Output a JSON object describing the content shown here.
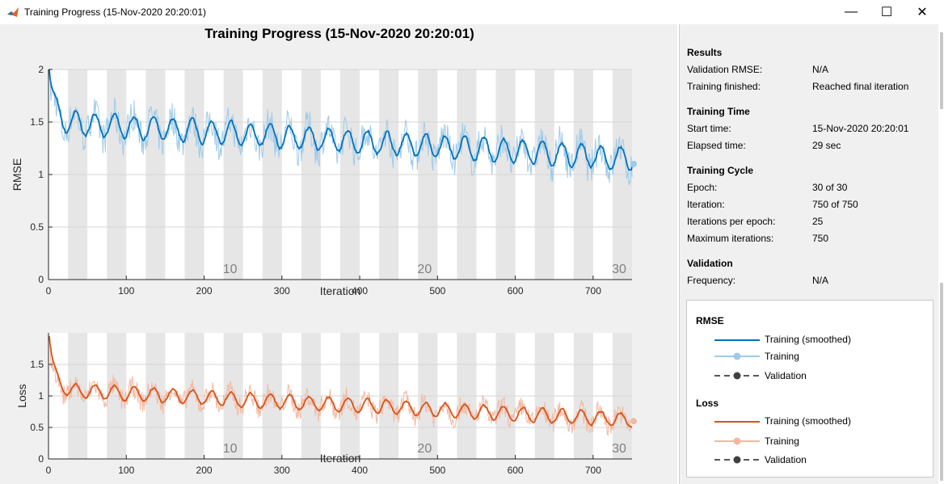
{
  "window": {
    "title": "Training Progress (15-Nov-2020 20:20:01)",
    "controls": {
      "minimize": "—",
      "maximize": "☐",
      "close": "✕"
    }
  },
  "main_title": "Training Progress (15-Nov-2020 20:20:01)",
  "colors": {
    "rmse_smoothed": "#0072bd",
    "rmse_raw": "#9ecae9",
    "loss_smoothed": "#d95319",
    "loss_raw": "#f3b8a0",
    "validation": "#404040",
    "epoch_band": "#e6e6e6"
  },
  "chart_data": [
    {
      "type": "line",
      "name": "rmse",
      "ylabel": "RMSE",
      "xlabel": "Iteration",
      "xlim": [
        0,
        750
      ],
      "ylim": [
        0,
        2
      ],
      "x_ticks": [
        "0",
        "100",
        "200",
        "300",
        "400",
        "500",
        "600",
        "700"
      ],
      "y_ticks": [
        "0",
        "0.5",
        "1",
        "1.5",
        "2"
      ],
      "epoch_labels": [
        "10",
        "20",
        "30"
      ],
      "grid": true,
      "series": [
        {
          "name": "Training (smoothed)",
          "start": 1.95,
          "plateau": 1.5,
          "end": 1.15,
          "amplitude": 0.12
        },
        {
          "name": "Training",
          "start": 2.0,
          "end": 1.1,
          "noise": 0.16
        }
      ]
    },
    {
      "type": "line",
      "name": "loss",
      "ylabel": "Loss",
      "xlabel": "Iteration",
      "xlim": [
        0,
        750
      ],
      "ylim": [
        0,
        2
      ],
      "x_ticks": [
        "0",
        "100",
        "200",
        "300",
        "400",
        "500",
        "600",
        "700"
      ],
      "y_ticks": [
        "0",
        "0.5",
        "1",
        "1.5"
      ],
      "epoch_labels": [
        "10",
        "20",
        "30"
      ],
      "grid": true,
      "series": [
        {
          "name": "Training (smoothed)",
          "start": 1.9,
          "plateau": 1.1,
          "end": 0.62,
          "amplitude": 0.12
        },
        {
          "name": "Training",
          "start": 1.95,
          "end": 0.6,
          "noise": 0.17
        }
      ]
    }
  ],
  "info": {
    "results": {
      "heading": "Results",
      "rows": [
        {
          "key": "Validation RMSE:",
          "value": "N/A"
        },
        {
          "key": "Training finished:",
          "value": "Reached final iteration"
        }
      ]
    },
    "training_time": {
      "heading": "Training Time",
      "rows": [
        {
          "key": "Start time:",
          "value": "15-Nov-2020 20:20:01"
        },
        {
          "key": "Elapsed time:",
          "value": "29 sec"
        }
      ]
    },
    "training_cycle": {
      "heading": "Training Cycle",
      "rows": [
        {
          "key": "Epoch:",
          "value": "30 of 30"
        },
        {
          "key": "Iteration:",
          "value": "750 of 750"
        },
        {
          "key": "Iterations per epoch:",
          "value": "25"
        },
        {
          "key": "Maximum iterations:",
          "value": "750"
        }
      ]
    },
    "validation": {
      "heading": "Validation",
      "rows": [
        {
          "key": "Frequency:",
          "value": "N/A"
        }
      ]
    }
  },
  "legend": {
    "rmse": {
      "heading": "RMSE",
      "smoothed": "Training (smoothed)",
      "training": "Training",
      "validation": "Validation"
    },
    "loss": {
      "heading": "Loss",
      "smoothed": "Training (smoothed)",
      "training": "Training",
      "validation": "Validation"
    }
  }
}
